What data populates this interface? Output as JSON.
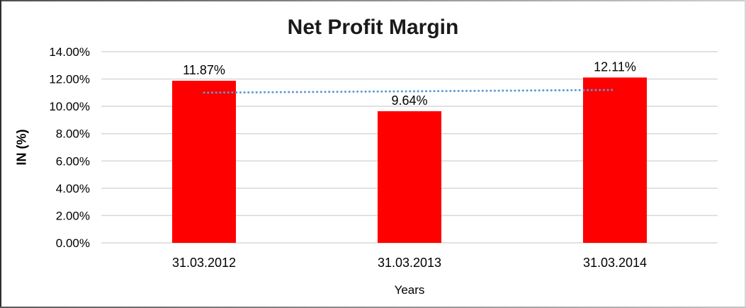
{
  "chart_data": {
    "type": "bar",
    "title": "Net Profit Margin",
    "xlabel": "Years",
    "ylabel": "IN (%)",
    "categories": [
      "31.03.2012",
      "31.03.2013",
      "31.03.2014"
    ],
    "values": [
      11.87,
      9.64,
      12.11
    ],
    "data_labels": [
      "11.87%",
      "9.64%",
      "12.11%"
    ],
    "ylim": [
      0,
      14
    ],
    "yticks": [
      0,
      2,
      4,
      6,
      8,
      10,
      12,
      14
    ],
    "ytick_labels": [
      "0.00%",
      "2.00%",
      "4.00%",
      "6.00%",
      "8.00%",
      "10.00%",
      "12.00%",
      "14.00%"
    ],
    "grid": "horizontal",
    "legend": "none",
    "trendline": {
      "style": "dotted",
      "color": "#5B9BD5",
      "start_value": 11.0,
      "end_value": 11.2
    },
    "colors": {
      "bar": "#FF0000",
      "gridline": "#D8D8D8",
      "text": "#000000",
      "title": "#1A1A1A"
    }
  }
}
